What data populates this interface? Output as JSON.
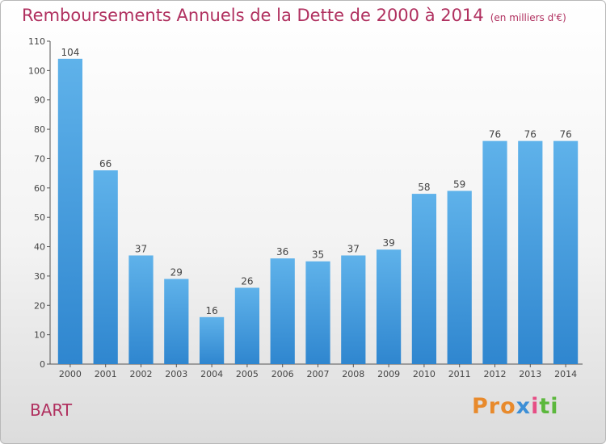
{
  "header": {
    "title": "Remboursements Annuels de la Dette de 2000 à 2014",
    "unit": "(en milliers d'€)"
  },
  "footer": {
    "commune": "BART",
    "logo_parts": [
      "Pro",
      "x",
      "i",
      "ti"
    ]
  },
  "colors": {
    "title": "#b0305f",
    "bar_top": "#5fb2ea",
    "bar_bottom": "#2f86cf"
  },
  "chart_data": {
    "type": "bar",
    "title": "Remboursements Annuels de la Dette de 2000 à 2014",
    "xlabel": "",
    "ylabel": "",
    "categories": [
      "2000",
      "2001",
      "2002",
      "2003",
      "2004",
      "2005",
      "2006",
      "2007",
      "2008",
      "2009",
      "2010",
      "2011",
      "2012",
      "2013",
      "2014"
    ],
    "values": [
      104,
      66,
      37,
      29,
      16,
      26,
      36,
      35,
      37,
      39,
      58,
      59,
      76,
      76,
      76
    ],
    "ylim": [
      0,
      110
    ],
    "yticks": [
      0,
      10,
      20,
      30,
      40,
      50,
      60,
      70,
      80,
      90,
      100,
      110
    ],
    "grid": false,
    "legend": "none"
  }
}
